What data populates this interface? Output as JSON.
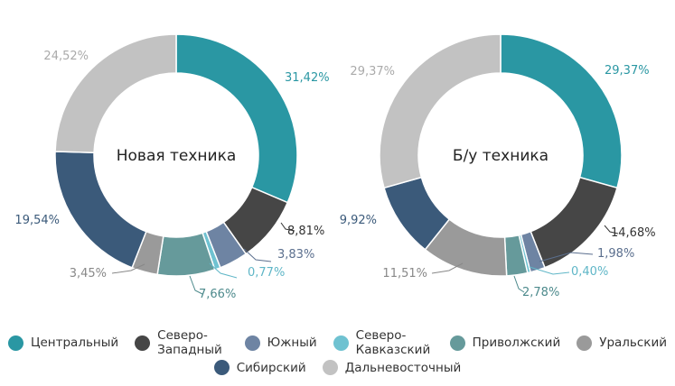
{
  "chart_data": [
    {
      "type": "pie",
      "title": "Новая техника",
      "categories": [
        "Центральный",
        "Северо-Западный",
        "Южный",
        "Северо-Кавказский",
        "Приволжский",
        "Уральский",
        "Сибирский",
        "Дальневосточный"
      ],
      "values": [
        31.42,
        8.81,
        3.83,
        0.77,
        7.66,
        3.45,
        19.54,
        24.52
      ],
      "labels": [
        "31,42%",
        "8,81%",
        "3,83%",
        "0,77%",
        "7,66%",
        "3,45%",
        "19,54%",
        "24,52%"
      ]
    },
    {
      "type": "pie",
      "title": "Б/у техника",
      "categories": [
        "Центральный",
        "Северо-Западный",
        "Южный",
        "Северо-Кавказский",
        "Приволжский",
        "Уральский",
        "Сибирский",
        "Дальневосточный"
      ],
      "values": [
        29.37,
        14.68,
        1.98,
        0.4,
        2.78,
        11.51,
        9.92,
        29.37
      ],
      "labels": [
        "29,37%",
        "14,68%",
        "1,98%",
        "0,40%",
        "2,78%",
        "11,51%",
        "9,92%",
        "29,37%"
      ]
    }
  ],
  "legend": {
    "row1": [
      {
        "label": "Центральный",
        "color": "#2a97a3"
      },
      {
        "label": "Северо-Западный",
        "color": "#464646"
      },
      {
        "label": "Южный",
        "color": "#6e84a3"
      },
      {
        "label": "Северо-Кавказский",
        "color": "#6fc2d1"
      },
      {
        "label": "Приволжский",
        "color": "#669a9b"
      },
      {
        "label": "Уральский",
        "color": "#9a9a9a"
      }
    ],
    "row2": [
      {
        "label": "Сибирский",
        "color": "#3b5a7a"
      },
      {
        "label": "Дальневосточный",
        "color": "#c2c2c2"
      }
    ]
  },
  "colors": [
    "#2a97a3",
    "#464646",
    "#6e84a3",
    "#6fc2d1",
    "#669a9b",
    "#9a9a9a",
    "#3b5a7a",
    "#c2c2c2"
  ],
  "label_colors": [
    "#2a97a3",
    "#333333",
    "#5b6f8e",
    "#5fb6c7",
    "#4d8a8c",
    "#888888",
    "#3b5a7a",
    "#aaaaaa"
  ]
}
